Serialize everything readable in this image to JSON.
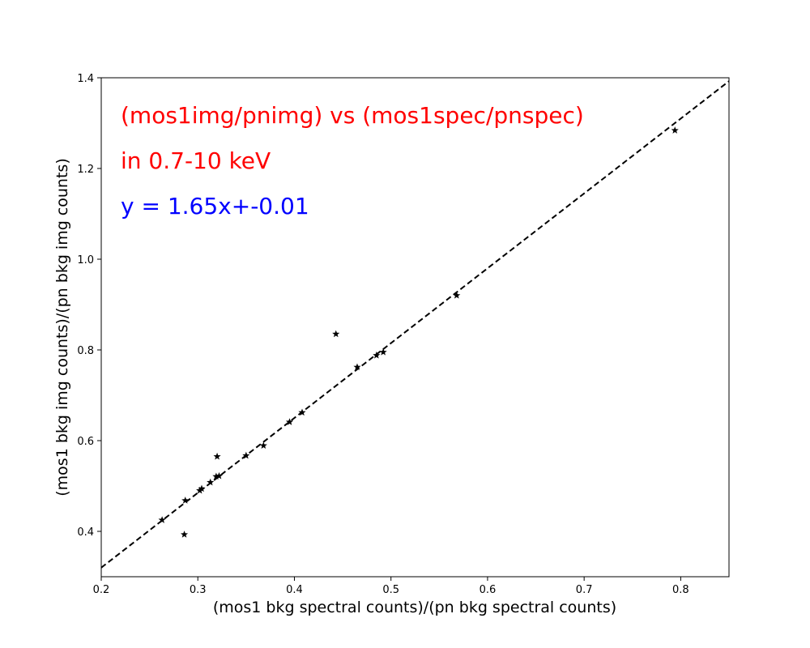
{
  "chart_data": {
    "type": "scatter",
    "title": "",
    "xlabel": "(mos1 bkg spectral counts)/(pn bkg spectral counts)",
    "ylabel": "(mos1 bkg img counts)/(pn bkg img counts)",
    "xlim": [
      0.2,
      0.85
    ],
    "ylim": [
      0.3,
      1.4
    ],
    "xticks": [
      "0.2",
      "0.3",
      "0.4",
      "0.5",
      "0.6",
      "0.7",
      "0.8"
    ],
    "yticks": [
      "0.4",
      "0.6",
      "0.8",
      "1.0",
      "1.2",
      "1.4"
    ],
    "grid": false,
    "marker": "star",
    "marker_color": "#000000",
    "points": [
      {
        "x": 0.263,
        "y": 0.425
      },
      {
        "x": 0.286,
        "y": 0.393
      },
      {
        "x": 0.287,
        "y": 0.468
      },
      {
        "x": 0.302,
        "y": 0.49
      },
      {
        "x": 0.304,
        "y": 0.494
      },
      {
        "x": 0.313,
        "y": 0.508
      },
      {
        "x": 0.319,
        "y": 0.521
      },
      {
        "x": 0.322,
        "y": 0.522
      },
      {
        "x": 0.32,
        "y": 0.565
      },
      {
        "x": 0.35,
        "y": 0.567
      },
      {
        "x": 0.368,
        "y": 0.589
      },
      {
        "x": 0.395,
        "y": 0.641
      },
      {
        "x": 0.408,
        "y": 0.662
      },
      {
        "x": 0.443,
        "y": 0.835
      },
      {
        "x": 0.465,
        "y": 0.762
      },
      {
        "x": 0.485,
        "y": 0.788
      },
      {
        "x": 0.492,
        "y": 0.795
      },
      {
        "x": 0.568,
        "y": 0.92
      },
      {
        "x": 0.794,
        "y": 1.284
      }
    ],
    "fit_line": {
      "slope": 1.65,
      "intercept": -0.01,
      "style": "dashed",
      "color": "#000000"
    },
    "annotations": [
      {
        "text": "(mos1img/pnimg) vs (mos1spec/pnspec)",
        "color": "#ff0000"
      },
      {
        "text": "in 0.7-10 keV",
        "color": "#ff0000"
      },
      {
        "text": "y = 1.65x+-0.01",
        "color": "#0000ff"
      }
    ]
  }
}
